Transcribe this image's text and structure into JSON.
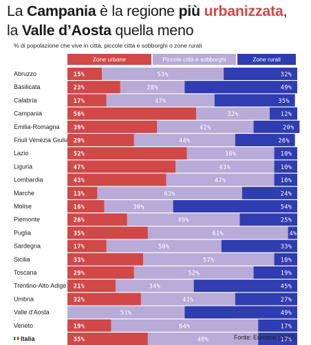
{
  "title": {
    "line1": [
      "La ",
      "Campania",
      " è la regione ",
      "più",
      " ",
      "urbanizzata",
      ","
    ],
    "line2": [
      "la ",
      "Valle d’Aosta",
      " quella meno"
    ]
  },
  "subtitle": "% di popolazione che vive in città, piccole città e sobborghi o zone rurali",
  "source": "Fonte: Eurostat (2022)",
  "colors": {
    "urban": "#d04848",
    "small": "#b8abd8",
    "rural": "#2f3db0",
    "label_small": "#ffffff"
  },
  "chart_data": {
    "type": "bar",
    "stacked": true,
    "orientation": "horizontal",
    "percent_suffix": "%",
    "categories": [
      "Abruzzo",
      "Basilicata",
      "Calabria",
      "Campania",
      "Emilia-Romagna",
      "Friuli Venezia Giulia",
      "Lazio",
      "Liguria",
      "Lombardia",
      "Marche",
      "Molise",
      "Piemonte",
      "Puglia",
      "Sardegna",
      "Sicilia",
      "Toscana",
      "Trentino-Alto Adige",
      "Umbria",
      "Valle d'Aosta",
      "Veneto",
      "Italia"
    ],
    "highlight": "Italia",
    "series": [
      {
        "name": "Zone urbane",
        "values": [
          15,
          23,
          17,
          56,
          39,
          29,
          52,
          47,
          43,
          13,
          16,
          26,
          35,
          17,
          33,
          29,
          21,
          32,
          0,
          19,
          35
        ]
      },
      {
        "name": "Piccole città e sobborghi",
        "values": [
          53,
          28,
          47,
          32,
          42,
          44,
          38,
          43,
          47,
          63,
          30,
          49,
          61,
          50,
          57,
          52,
          34,
          41,
          51,
          64,
          48
        ]
      },
      {
        "name": "Zone rurali",
        "values": [
          32,
          49,
          35,
          12,
          20,
          26,
          10,
          10,
          10,
          24,
          54,
          25,
          4,
          33,
          10,
          19,
          45,
          27,
          49,
          17,
          17
        ]
      }
    ],
    "xlim": [
      0,
      100
    ],
    "legend": "top"
  }
}
